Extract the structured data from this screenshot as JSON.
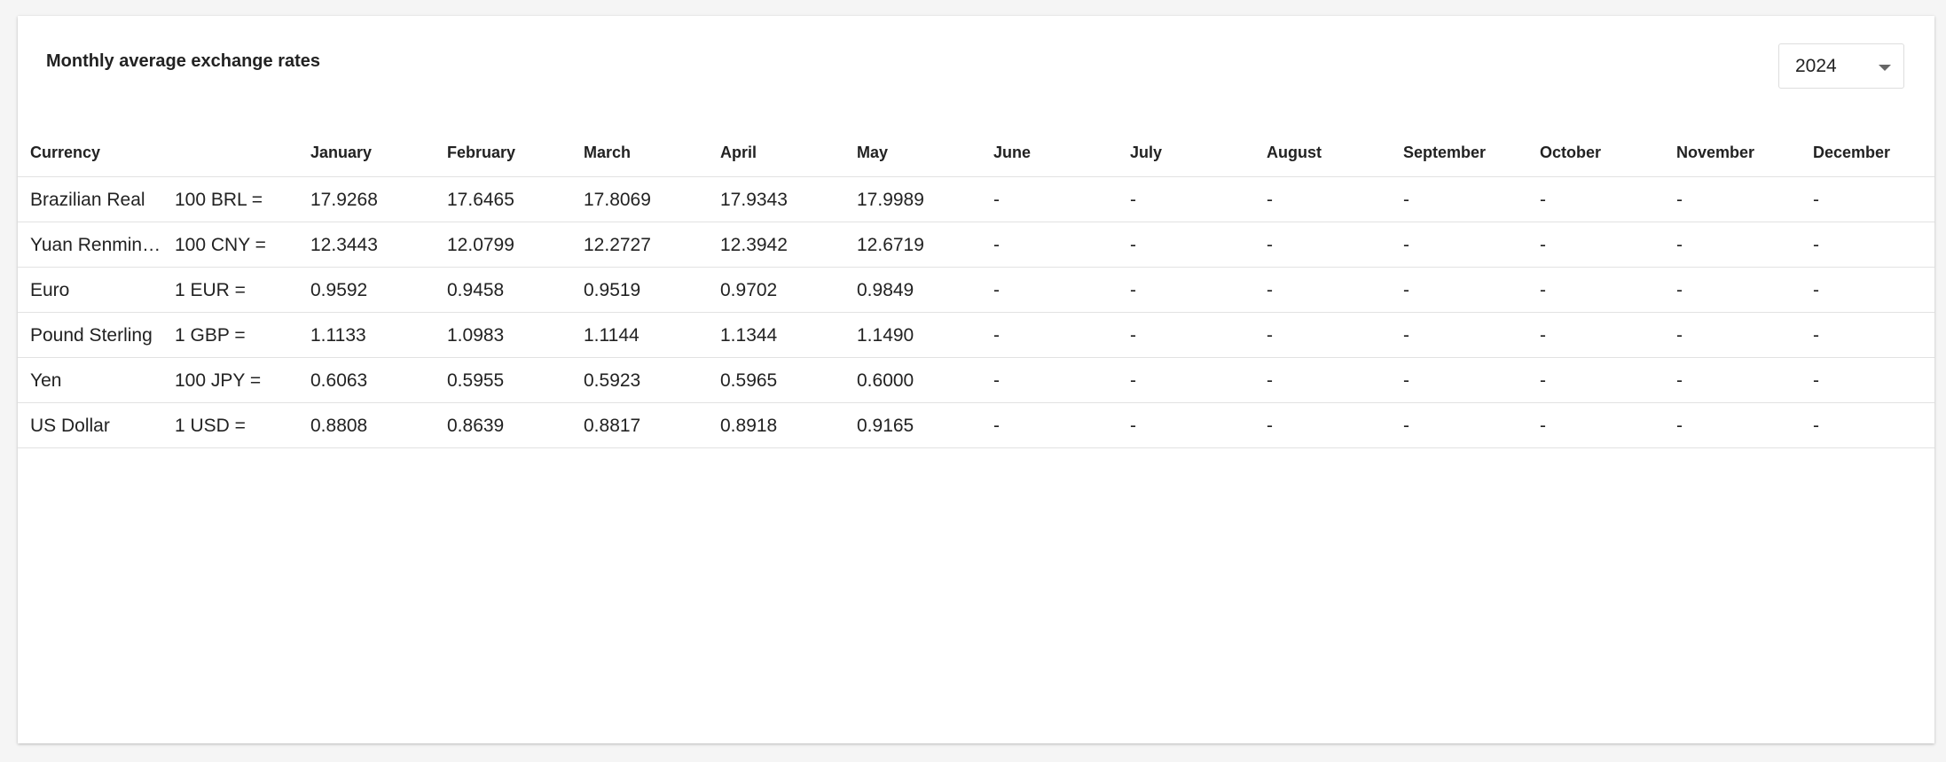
{
  "title": "Monthly average exchange rates",
  "year_select": "2024",
  "table": {
    "header": [
      "Currency",
      "January",
      "February",
      "March",
      "April",
      "May",
      "June",
      "July",
      "August",
      "September",
      "October",
      "November",
      "December"
    ],
    "rows": [
      [
        "Brazilian Real",
        "100 BRL =",
        "17.9268",
        "17.6465",
        "17.8069",
        "17.9343",
        "17.9989",
        "-",
        "-",
        "-",
        "-",
        "-",
        "-",
        "-"
      ],
      [
        "Yuan Renmin…",
        "100 CNY =",
        "12.3443",
        "12.0799",
        "12.2727",
        "12.3942",
        "12.6719",
        "-",
        "-",
        "-",
        "-",
        "-",
        "-",
        "-"
      ],
      [
        "Euro",
        "1 EUR =",
        "0.9592",
        "0.9458",
        "0.9519",
        "0.9702",
        "0.9849",
        "-",
        "-",
        "-",
        "-",
        "-",
        "-",
        "-"
      ],
      [
        "Pound Sterling",
        "1 GBP =",
        "1.1133",
        "1.0983",
        "1.1144",
        "1.1344",
        "1.1490",
        "-",
        "-",
        "-",
        "-",
        "-",
        "-",
        "-"
      ],
      [
        "Yen",
        "100 JPY =",
        "0.6063",
        "0.5955",
        "0.5923",
        "0.5965",
        "0.6000",
        "-",
        "-",
        "-",
        "-",
        "-",
        "-",
        "-"
      ],
      [
        "US Dollar",
        "1 USD =",
        "0.8808",
        "0.8639",
        "0.8817",
        "0.8918",
        "0.9165",
        "-",
        "-",
        "-",
        "-",
        "-",
        "-",
        "-"
      ]
    ]
  }
}
